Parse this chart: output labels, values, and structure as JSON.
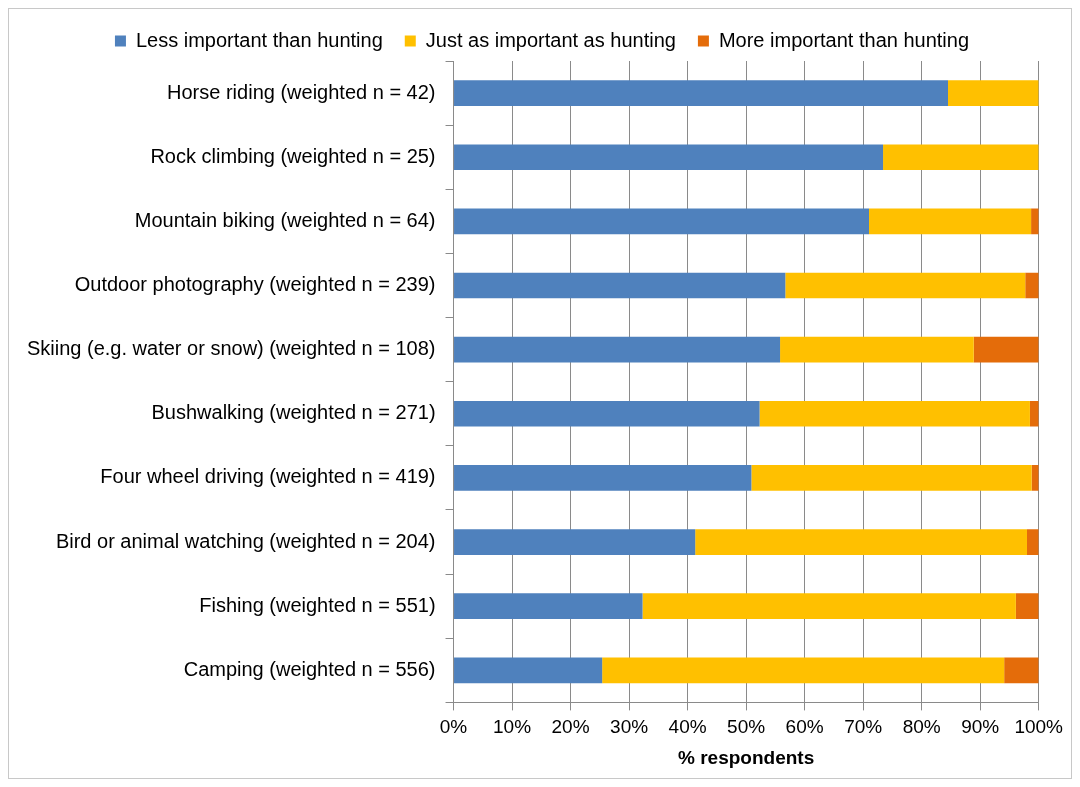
{
  "chart_data": {
    "type": "bar",
    "orientation": "horizontal",
    "stacked": true,
    "categories": [
      "Horse riding (weighted n = 42)",
      "Rock climbing (weighted n = 25)",
      "Mountain biking (weighted n = 64)",
      "Outdoor photography (weighted n = 239)",
      "Skiing (e.g. water or snow) (weighted n = 108)",
      "Bushwalking (weighted n = 271)",
      "Four wheel driving (weighted n = 419)",
      "Bird or animal watching (weighted n = 204)",
      "Fishing (weighted n = 551)",
      "Camping (weighted n = 556)"
    ],
    "series": [
      {
        "name": "Less important than hunting",
        "color": "#4f81bd",
        "values": [
          84.5,
          73.4,
          71.0,
          56.7,
          55.8,
          52.3,
          50.9,
          41.3,
          32.3,
          25.4
        ]
      },
      {
        "name": "Just as important as hunting",
        "color": "#ffc000",
        "values": [
          15.5,
          26.6,
          27.7,
          41.0,
          33.1,
          46.2,
          47.9,
          56.7,
          63.8,
          68.7
        ]
      },
      {
        "name": "More important than hunting",
        "color": "#e46c0a",
        "values": [
          0,
          0,
          1.3,
          2.3,
          11.1,
          1.5,
          1.2,
          2.0,
          3.9,
          5.9
        ]
      }
    ],
    "xlabel": "% respondents",
    "xlim": [
      0,
      100
    ],
    "xticks": [
      {
        "value": 0,
        "label": "0%"
      },
      {
        "value": 10,
        "label": "10%"
      },
      {
        "value": 20,
        "label": "20%"
      },
      {
        "value": 30,
        "label": "30%"
      },
      {
        "value": 40,
        "label": "40%"
      },
      {
        "value": 50,
        "label": "50%"
      },
      {
        "value": 60,
        "label": "60%"
      },
      {
        "value": 70,
        "label": "70%"
      },
      {
        "value": 80,
        "label": "80%"
      },
      {
        "value": 90,
        "label": "90%"
      },
      {
        "value": 100,
        "label": "100%"
      }
    ],
    "grid": "x",
    "legend": "top"
  }
}
